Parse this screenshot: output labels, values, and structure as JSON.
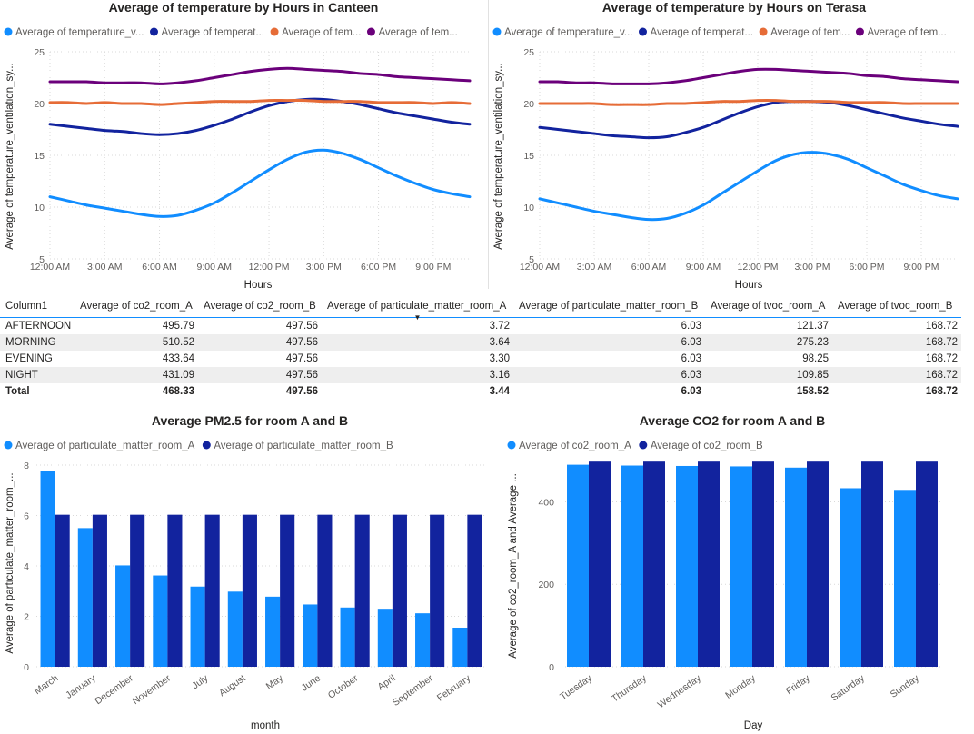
{
  "colors": {
    "light_blue": "#118dff",
    "dark_blue": "#12239e",
    "orange": "#e66c37",
    "purple": "#6b007b"
  },
  "chart_data": [
    {
      "type": "line",
      "title": "Average of temperature by Hours in Canteen",
      "xlabel": "Hours",
      "ylabel": "Average of temperature_ventilation_sy...",
      "ylim": [
        5,
        25
      ],
      "yticks": [
        5,
        10,
        15,
        20,
        25
      ],
      "x": [
        "12:00 AM",
        "1:00 AM",
        "2:00 AM",
        "3:00 AM",
        "4:00 AM",
        "5:00 AM",
        "6:00 AM",
        "7:00 AM",
        "8:00 AM",
        "9:00 AM",
        "10:00 AM",
        "11:00 AM",
        "12:00 PM",
        "1:00 PM",
        "2:00 PM",
        "3:00 PM",
        "4:00 PM",
        "5:00 PM",
        "6:00 PM",
        "7:00 PM",
        "8:00 PM",
        "9:00 PM",
        "10:00 PM",
        "11:00 PM"
      ],
      "xtick_labels": [
        "12:00 AM",
        "3:00 AM",
        "6:00 AM",
        "9:00 AM",
        "12:00 PM",
        "3:00 PM",
        "6:00 PM",
        "9:00 PM"
      ],
      "grid": true,
      "legend": "top",
      "series": [
        {
          "name": "Average of temperature_v...",
          "color": "#118dff",
          "values": [
            11.0,
            10.6,
            10.2,
            9.9,
            9.6,
            9.3,
            9.1,
            9.2,
            9.7,
            10.4,
            11.4,
            12.5,
            13.6,
            14.6,
            15.3,
            15.5,
            15.2,
            14.6,
            13.8,
            13.0,
            12.3,
            11.7,
            11.3,
            11.0
          ]
        },
        {
          "name": "Average of temperat...",
          "color": "#12239e",
          "values": [
            18.0,
            17.8,
            17.6,
            17.4,
            17.3,
            17.1,
            17.0,
            17.1,
            17.4,
            17.9,
            18.5,
            19.2,
            19.8,
            20.2,
            20.4,
            20.4,
            20.2,
            19.9,
            19.5,
            19.1,
            18.8,
            18.5,
            18.2,
            18.0
          ]
        },
        {
          "name": "Average of tem...",
          "color": "#e66c37",
          "values": [
            20.1,
            20.1,
            20.0,
            20.1,
            20.0,
            20.0,
            19.9,
            20.0,
            20.1,
            20.2,
            20.2,
            20.2,
            20.3,
            20.3,
            20.3,
            20.2,
            20.2,
            20.2,
            20.1,
            20.1,
            20.1,
            20.0,
            20.1,
            20.0
          ]
        },
        {
          "name": "Average of tem...",
          "color": "#6b007b",
          "values": [
            22.1,
            22.1,
            22.1,
            22.0,
            22.0,
            22.0,
            21.9,
            22.0,
            22.2,
            22.5,
            22.8,
            23.1,
            23.3,
            23.4,
            23.3,
            23.2,
            23.1,
            22.9,
            22.8,
            22.6,
            22.5,
            22.4,
            22.3,
            22.2
          ]
        }
      ]
    },
    {
      "type": "line",
      "title": "Average of temperature by Hours on Terasa",
      "xlabel": "Hours",
      "ylabel": "Average of temperature_ventilation_sy...",
      "ylim": [
        5,
        25
      ],
      "yticks": [
        5,
        10,
        15,
        20,
        25
      ],
      "x": [
        "12:00 AM",
        "1:00 AM",
        "2:00 AM",
        "3:00 AM",
        "4:00 AM",
        "5:00 AM",
        "6:00 AM",
        "7:00 AM",
        "8:00 AM",
        "9:00 AM",
        "10:00 AM",
        "11:00 AM",
        "12:00 PM",
        "1:00 PM",
        "2:00 PM",
        "3:00 PM",
        "4:00 PM",
        "5:00 PM",
        "6:00 PM",
        "7:00 PM",
        "8:00 PM",
        "9:00 PM",
        "10:00 PM",
        "11:00 PM"
      ],
      "xtick_labels": [
        "12:00 AM",
        "3:00 AM",
        "6:00 AM",
        "9:00 AM",
        "12:00 PM",
        "3:00 PM",
        "6:00 PM",
        "9:00 PM"
      ],
      "grid": true,
      "legend": "top",
      "series": [
        {
          "name": "Average of temperature_v...",
          "color": "#118dff",
          "values": [
            10.8,
            10.4,
            10.0,
            9.6,
            9.3,
            9.0,
            8.8,
            8.9,
            9.4,
            10.2,
            11.3,
            12.4,
            13.5,
            14.5,
            15.1,
            15.3,
            15.1,
            14.6,
            13.8,
            13.0,
            12.2,
            11.6,
            11.1,
            10.8
          ]
        },
        {
          "name": "Average of temperat...",
          "color": "#12239e",
          "values": [
            17.7,
            17.5,
            17.3,
            17.1,
            16.9,
            16.8,
            16.7,
            16.8,
            17.2,
            17.7,
            18.4,
            19.1,
            19.7,
            20.1,
            20.2,
            20.2,
            20.1,
            19.8,
            19.4,
            19.0,
            18.6,
            18.3,
            18.0,
            17.8
          ]
        },
        {
          "name": "Average of tem...",
          "color": "#e66c37",
          "values": [
            20.0,
            20.0,
            20.0,
            20.0,
            19.9,
            19.9,
            19.9,
            20.0,
            20.0,
            20.1,
            20.2,
            20.2,
            20.3,
            20.3,
            20.2,
            20.2,
            20.2,
            20.1,
            20.1,
            20.1,
            20.0,
            20.0,
            20.0,
            20.0
          ]
        },
        {
          "name": "Average of tem...",
          "color": "#6b007b",
          "values": [
            22.1,
            22.1,
            22.0,
            22.0,
            21.9,
            21.9,
            21.9,
            22.0,
            22.2,
            22.5,
            22.8,
            23.1,
            23.3,
            23.3,
            23.2,
            23.1,
            23.0,
            22.9,
            22.7,
            22.6,
            22.4,
            22.3,
            22.2,
            22.1
          ]
        }
      ]
    },
    {
      "type": "table",
      "columns": [
        "Column1",
        "Average of co2_room_A",
        "Average of co2_room_B",
        "Average of particulate_matter_room_A",
        "Average of particulate_matter_room_B",
        "Average of tvoc_room_A",
        "Average of tvoc_room_B"
      ],
      "sort_indicator": "▼",
      "rows": [
        [
          "AFTERNOON",
          "495.79",
          "497.56",
          "3.72",
          "6.03",
          "121.37",
          "168.72"
        ],
        [
          "MORNING",
          "510.52",
          "497.56",
          "3.64",
          "6.03",
          "275.23",
          "168.72"
        ],
        [
          "EVENING",
          "433.64",
          "497.56",
          "3.30",
          "6.03",
          "98.25",
          "168.72"
        ],
        [
          "NIGHT",
          "431.09",
          "497.56",
          "3.16",
          "6.03",
          "109.85",
          "168.72"
        ]
      ],
      "total": [
        "Total",
        "468.33",
        "497.56",
        "3.44",
        "6.03",
        "158.52",
        "168.72"
      ]
    },
    {
      "type": "bar",
      "title": "Average PM2.5 for room A and B",
      "xlabel": "month",
      "ylabel": "Average of particulate_matter_room_...",
      "ylim": [
        0,
        8
      ],
      "yticks": [
        0,
        2,
        4,
        6,
        8
      ],
      "grid": true,
      "legend": "top-left",
      "categories": [
        "March",
        "January",
        "December",
        "November",
        "July",
        "August",
        "May",
        "June",
        "October",
        "April",
        "September",
        "February"
      ],
      "series": [
        {
          "name": "Average of particulate_matter_room_A",
          "color": "#118dff",
          "values": [
            7.75,
            5.5,
            4.02,
            3.62,
            3.18,
            2.98,
            2.78,
            2.47,
            2.35,
            2.3,
            2.12,
            1.55
          ]
        },
        {
          "name": "Average of particulate_matter_room_B",
          "color": "#12239e",
          "values": [
            6.03,
            6.03,
            6.03,
            6.03,
            6.03,
            6.03,
            6.03,
            6.03,
            6.03,
            6.03,
            6.03,
            6.03
          ]
        }
      ]
    },
    {
      "type": "bar",
      "title": "Average CO2 for room A and B",
      "xlabel": "Day",
      "ylabel": "Average of co2_room_A and Average ...",
      "ylim": [
        0,
        520
      ],
      "yticks": [
        0,
        200,
        400
      ],
      "grid": true,
      "legend": "top-left",
      "categories": [
        "Tuesday",
        "Thursday",
        "Wednesday",
        "Monday",
        "Friday",
        "Saturday",
        "Sunday"
      ],
      "series": [
        {
          "name": "Average of co2_room_A",
          "color": "#118dff",
          "values": [
            490,
            488,
            487,
            486,
            483,
            433,
            429
          ]
        },
        {
          "name": "Average of co2_room_B",
          "color": "#12239e",
          "values": [
            497.56,
            497.56,
            497.56,
            497.56,
            497.56,
            497.56,
            497.56
          ]
        }
      ]
    }
  ]
}
